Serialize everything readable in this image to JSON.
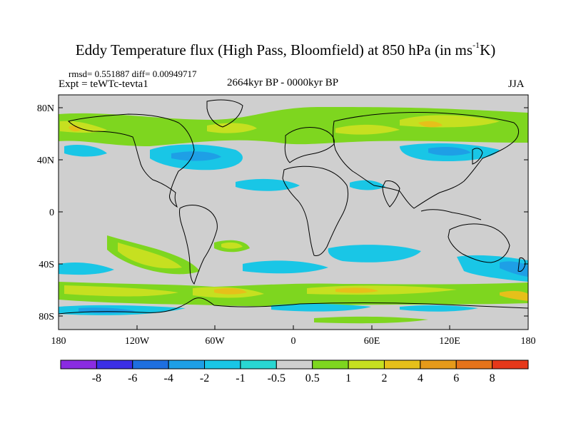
{
  "title": {
    "main": "Eddy Temperature flux (High Pass, Bloomfield) at 850 hPa (in ms",
    "superscript": "-1",
    "suffix": "K)"
  },
  "stats": {
    "rmsd_diff": "rmsd= 0.551887 diff= 0.00949717",
    "expt": "Expt = teWTc-tevta1",
    "period": "2664kyr BP - 0000kyr BP",
    "season": "JJA"
  },
  "axes": {
    "lat_ticks": [
      "80N",
      "40N",
      "0",
      "40S",
      "80S"
    ],
    "lon_ticks": [
      "180",
      "120W",
      "60W",
      "0",
      "60E",
      "120E",
      "180"
    ]
  },
  "colorbar": {
    "labels": [
      "-8",
      "-6",
      "-4",
      "-2",
      "-1",
      "-0.5",
      "0.5",
      "1",
      "2",
      "4",
      "6",
      "8"
    ],
    "colors": [
      "#8a2be2",
      "#3b2ee6",
      "#1e6fe0",
      "#1e9fe6",
      "#19c6e6",
      "#29d7d2",
      "#cfcfcf",
      "#7ed61f",
      "#c6e020",
      "#e6c01a",
      "#e69a1a",
      "#e6731a",
      "#e6381a"
    ]
  },
  "colors": {
    "background": "#cfcfcf",
    "coast": "#000000"
  }
}
